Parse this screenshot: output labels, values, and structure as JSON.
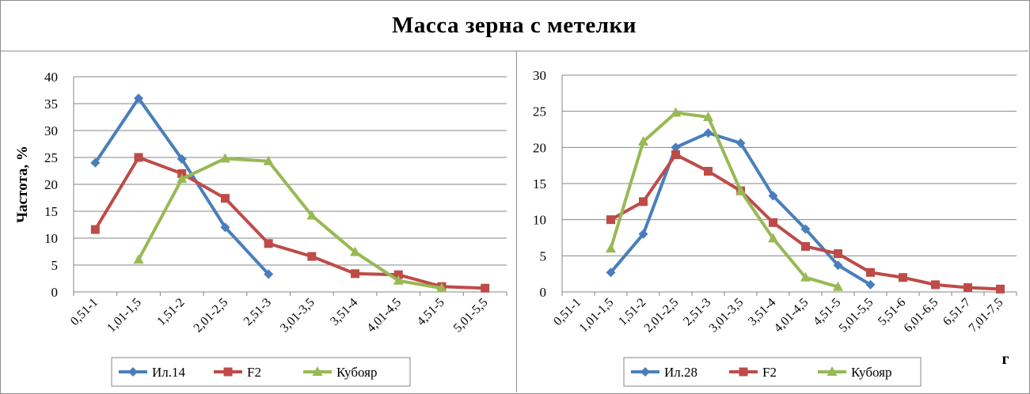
{
  "title": "Масса зерна с метелки",
  "colors": {
    "blue": "#4a7ebb",
    "red": "#be4b48",
    "green": "#98b954",
    "grid": "#868686",
    "axis": "#868686"
  },
  "chart_data": [
    {
      "type": "line",
      "ylabel": "Частота, %",
      "xlabel": "",
      "ylim": [
        0,
        40
      ],
      "yticks": [
        "0",
        "5",
        "10",
        "15",
        "20",
        "25",
        "30",
        "35",
        "40"
      ],
      "categories": [
        "0,51-1",
        "1,01-1,5",
        "1,51-2",
        "2,01-2,5",
        "2,51-3",
        "3,01-3,5",
        "3,51-4",
        "4,01-4,5",
        "4,51-5",
        "5,01-5,5"
      ],
      "legend_position": "bottom",
      "series": [
        {
          "name": "Ил.14",
          "color": "blue",
          "marker": "diamond",
          "values": [
            24,
            36,
            24.7,
            12,
            3.3,
            null,
            null,
            null,
            null,
            null
          ]
        },
        {
          "name": "F2",
          "color": "red",
          "marker": "square",
          "values": [
            11.6,
            25,
            22,
            17.4,
            9,
            6.6,
            3.4,
            3.2,
            1,
            0.7
          ]
        },
        {
          "name": "Кубояр",
          "color": "green",
          "marker": "triangle",
          "values": [
            null,
            6,
            21,
            24.8,
            24.3,
            14.2,
            7.4,
            2.1,
            0.7,
            null
          ]
        }
      ]
    },
    {
      "type": "line",
      "ylabel": "",
      "xlabel": "г",
      "ylim": [
        0,
        30
      ],
      "yticks": [
        "0",
        "5",
        "10",
        "15",
        "20",
        "25",
        "30"
      ],
      "categories": [
        "0,51-1",
        "1,01-1,5",
        "1,51-2",
        "2,01-2,5",
        "2,51-3",
        "3,01-3,5",
        "3,51-4",
        "4,01-4,5",
        "4,51-5",
        "5,01-5,5",
        "5,51-6",
        "6,01-6,5",
        "6,51-7",
        "7,01-7,5"
      ],
      "legend_position": "bottom",
      "series": [
        {
          "name": "Ил.28",
          "color": "blue",
          "marker": "diamond",
          "values": [
            null,
            2.7,
            8,
            20,
            22,
            20.6,
            13.3,
            8.7,
            3.7,
            1,
            null,
            null,
            null,
            null
          ]
        },
        {
          "name": "F2",
          "color": "red",
          "marker": "square",
          "values": [
            null,
            10,
            12.5,
            19,
            16.7,
            14,
            9.6,
            6.3,
            5.3,
            2.7,
            2,
            1,
            0.6,
            0.4
          ]
        },
        {
          "name": "Кубояр",
          "color": "green",
          "marker": "triangle",
          "values": [
            null,
            6,
            20.8,
            24.8,
            24.2,
            14,
            7.4,
            2,
            0.7,
            null,
            null,
            null,
            null,
            null
          ]
        }
      ]
    }
  ]
}
